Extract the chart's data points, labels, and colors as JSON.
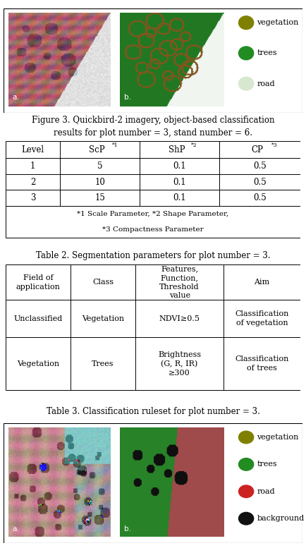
{
  "fig_caption1": "Figure 3. Quickbird-2 imagery, object-based classification\nresults for plot number = 3, stand number = 6.",
  "table2_caption": "Table 2. Segmentation parameters for plot number = 3.",
  "table3_caption": "Table 3. Classification ruleset for plot number = 3.",
  "table2_headers": [
    "Level",
    "ScP*1",
    "ShP*2",
    "CP*3"
  ],
  "table2_rows": [
    [
      "1",
      "5",
      "0.1",
      "0.5"
    ],
    [
      "2",
      "10",
      "0.1",
      "0.5"
    ],
    [
      "3",
      "15",
      "0.1",
      "0.5"
    ]
  ],
  "table3_headers": [
    "Field of\napplication",
    "Class",
    "Features,\nFunction,\nThreshold\nvalue",
    "Aim"
  ],
  "table3_rows": [
    [
      "Unclassified",
      "Vegetation",
      "NDVI≥0.5",
      "Classification\nof vegetation"
    ],
    [
      "Vegetation",
      "Trees",
      "Brightness\n(G, R, IR)\n≥300",
      "Classification\nof trees"
    ]
  ],
  "legend1_items": [
    {
      "label": "vegetation",
      "color": "#808000"
    },
    {
      "label": "trees",
      "color": "#228B22"
    },
    {
      "label": "road",
      "color": "#d8e8d0"
    }
  ],
  "legend2_items": [
    {
      "label": "vegetation",
      "color": "#808000"
    },
    {
      "label": "trees",
      "color": "#228B22"
    },
    {
      "label": "road",
      "color": "#cc2222"
    },
    {
      "label": "background",
      "color": "#111111"
    }
  ],
  "font_family": "DejaVu Serif",
  "font_size": 8,
  "caption_fontsize": 8.5
}
